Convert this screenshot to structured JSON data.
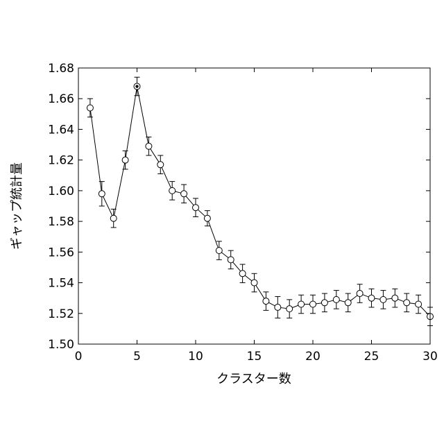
{
  "chart_data": {
    "type": "scatter",
    "title": "",
    "xlabel": "クラスター数",
    "ylabel": "ギャップ統計量",
    "xlim": [
      0,
      30
    ],
    "ylim": [
      1.5,
      1.68
    ],
    "x_ticks": [
      "0",
      "5",
      "10",
      "15",
      "20",
      "25",
      "30"
    ],
    "y_ticks": [
      "1.50",
      "1.52",
      "1.54",
      "1.56",
      "1.58",
      "1.60",
      "1.62",
      "1.64",
      "1.66",
      "1.68"
    ],
    "grid": false,
    "legend": "none",
    "marker": "open-circle",
    "line_color": "#000000",
    "highlighted_x": 5,
    "series": [
      {
        "x": [
          1,
          2,
          3,
          4,
          5,
          6,
          7,
          8,
          9,
          10,
          11,
          12,
          13,
          14,
          15,
          16,
          17,
          18,
          19,
          20,
          21,
          22,
          23,
          24,
          25,
          26,
          27,
          28,
          29,
          30
        ],
        "y": [
          1.654,
          1.598,
          1.582,
          1.62,
          1.668,
          1.629,
          1.617,
          1.6,
          1.598,
          1.589,
          1.582,
          1.561,
          1.555,
          1.546,
          1.54,
          1.528,
          1.524,
          1.523,
          1.526,
          1.526,
          1.527,
          1.529,
          1.527,
          1.533,
          1.53,
          1.529,
          1.53,
          1.527,
          1.526,
          1.518
        ],
        "err": [
          0.006,
          0.008,
          0.006,
          0.006,
          0.006,
          0.006,
          0.006,
          0.006,
          0.006,
          0.006,
          0.005,
          0.006,
          0.006,
          0.006,
          0.006,
          0.006,
          0.007,
          0.006,
          0.006,
          0.006,
          0.006,
          0.006,
          0.006,
          0.006,
          0.006,
          0.006,
          0.006,
          0.006,
          0.006,
          0.006
        ]
      }
    ]
  }
}
